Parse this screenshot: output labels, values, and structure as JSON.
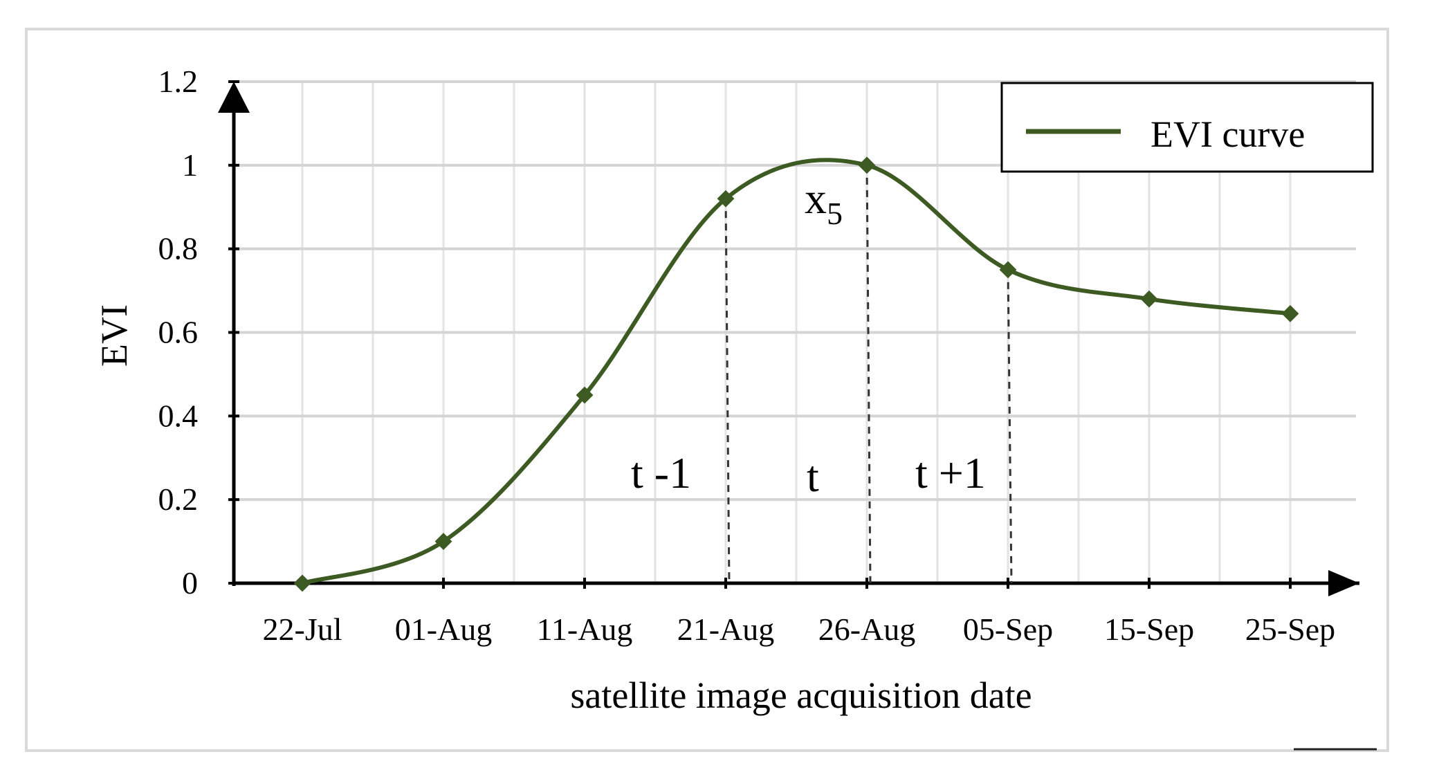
{
  "chart_data": {
    "type": "line",
    "xlabel": "satellite image acquisition date",
    "ylabel": "EVI",
    "categories": [
      "22-Jul",
      "01-Aug",
      "11-Aug",
      "21-Aug",
      "26-Aug",
      "05-Sep",
      "15-Sep",
      "25-Sep"
    ],
    "series": [
      {
        "name": "EVI curve",
        "color": "#3d5a22",
        "values": [
          0.0,
          0.1,
          0.45,
          0.92,
          1.0,
          0.75,
          0.68,
          0.645
        ]
      }
    ],
    "ylim": [
      0,
      1.2
    ],
    "yticks": [
      "0",
      "0.2",
      "0.4",
      "0.6",
      "0.8",
      "1",
      "1.2"
    ],
    "grid": true,
    "legend_position": "top-right",
    "smooth": true,
    "marker": "diamond",
    "annotations": {
      "point_label_main": "x",
      "point_label_sub": "5",
      "intervals": [
        "t -1",
        "t",
        "t +1"
      ]
    }
  }
}
